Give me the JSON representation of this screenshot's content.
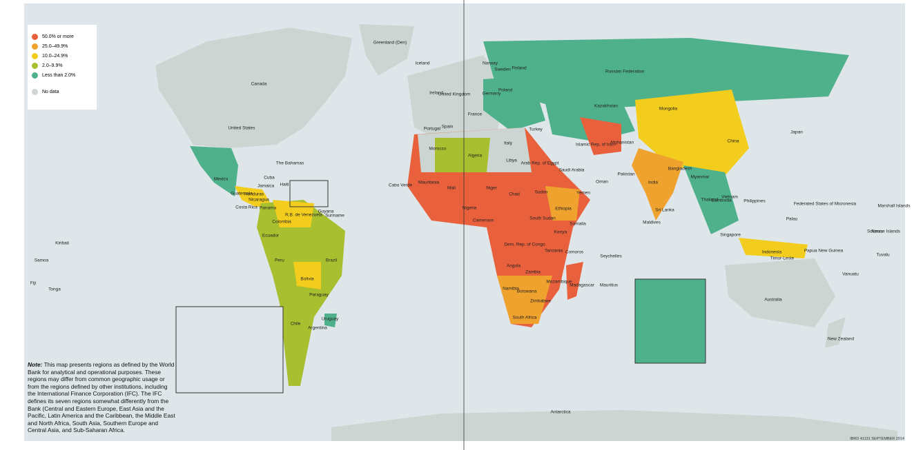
{
  "legend": {
    "items": [
      {
        "label": "50.0% or more",
        "color": "#e8603c"
      },
      {
        "label": "25.0–49.9%",
        "color": "#f0a22e"
      },
      {
        "label": "10.0–24.9%",
        "color": "#f3cd1d"
      },
      {
        "label": "2.0–9.9%",
        "color": "#a8bf2f"
      },
      {
        "label": "Less than 2.0%",
        "color": "#4fb08c"
      },
      {
        "label": "No data",
        "color": "#cfd6d4"
      }
    ]
  },
  "labels": [
    "Canada",
    "United States",
    "Greenland (Den)",
    "Mexico",
    "Cuba",
    "Jamaica",
    "Haiti",
    "The Bahamas",
    "Guatemala",
    "Honduras",
    "Nicaragua",
    "Costa Rica",
    "Panama",
    "Colombia",
    "R.B. de Venezuela",
    "Guyana",
    "Suriname",
    "Ecuador",
    "Peru",
    "Brazil",
    "Bolivia",
    "Paraguay",
    "Chile",
    "Argentina",
    "Uruguay",
    "Iceland",
    "Ireland",
    "United Kingdom",
    "France",
    "Spain",
    "Portugal",
    "Norway",
    "Sweden",
    "Finland",
    "Germany",
    "Poland",
    "Italy",
    "Russian Federation",
    "Kazakhstan",
    "Mongolia",
    "China",
    "Japan",
    "Turkey",
    "Islamic Rep. of Iran",
    "Afghanistan",
    "Pakistan",
    "India",
    "Sri Lanka",
    "Maldives",
    "Bangladesh",
    "Myanmar",
    "Thailand",
    "Cambodia",
    "Vietnam",
    "Philippines",
    "Indonesia",
    "Papua New Guinea",
    "Australia",
    "New Zealand",
    "Morocco",
    "Algeria",
    "Libya",
    "Arab Rep. of Egypt",
    "Saudi Arabia",
    "Mauritania",
    "Mali",
    "Niger",
    "Chad",
    "Sudan",
    "South Sudan",
    "Ethiopia",
    "Somalia",
    "Nigeria",
    "Cameroon",
    "Dem. Rep. of Congo",
    "Kenya",
    "Tanzania",
    "Angola",
    "Zambia",
    "Namibia",
    "Botswana",
    "Zimbabwe",
    "Mozambique",
    "Madagascar",
    "South Africa",
    "Kiribati",
    "Samoa",
    "Tonga",
    "Fiji",
    "Marshall Islands",
    "Antarctica",
    "Cabo Verde",
    "Yemen",
    "Oman",
    "Seychelles",
    "Comoros",
    "Mauritius",
    "Singapore",
    "Timor-Leste",
    "Solomon Islands",
    "Vanuatu",
    "Tuvalu",
    "Nauru",
    "Palau",
    "Federated States of Micronesia"
  ],
  "note": {
    "lead": "Note:",
    "text": "This map presents regions as defined by the World Bank for analytical and operational purposes. These regions may differ from common geographic usage or from the regions defined by other institutions, including the International Finance Corporation (IFC). The IFC defines its seven regions somewhat differently from the Bank (Central and Eastern Europe, East Asia and the Pacific, Latin America and the Caribbean, the Middle East and North Africa, South Asia, Southern Europe and Central Asia, and Sub-Saharan Africa."
  },
  "credit": "IBRD 41131  SEPTEMBER 2014"
}
